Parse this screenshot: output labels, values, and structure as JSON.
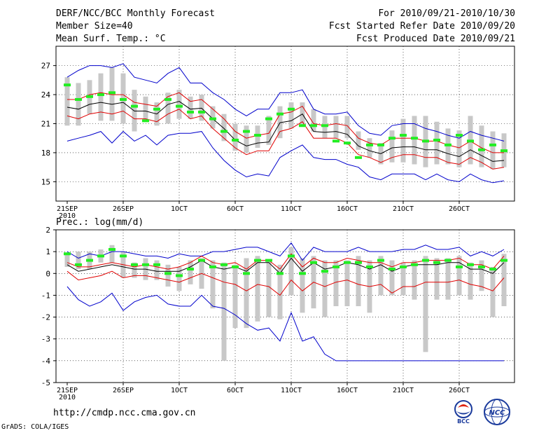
{
  "header": {
    "left": [
      "DERF/NCC/BCC Monthly Forecast",
      "Member Size=40",
      "Mean Surf. Temp.: °C"
    ],
    "right": [
      "For 2010/09/21-2010/10/30",
      "Fcst Started Refer Date 2010/09/20",
      "Fcst Produced Date 2010/09/21"
    ]
  },
  "footer": {
    "url": "http://cmdp.ncc.cma.gov.cn",
    "credit": "GrADS: COLA/IGES"
  },
  "logos": {
    "bcc": "BCC",
    "ncc": "NCC"
  },
  "colors": {
    "box": "#c8c8c8",
    "green": "#22ee22",
    "red": "#e00000",
    "blue": "#0000cc",
    "mean": "#000000",
    "grid": "#000000"
  },
  "chart_data": [
    {
      "type": "box-line",
      "title": "Mean Surf. Temp.: °C",
      "xlabel": "",
      "ylabel": "°C",
      "ylim": [
        13,
        29
      ],
      "yticks": [
        15,
        18,
        21,
        24,
        27
      ],
      "xticks": [
        {
          "day": 0,
          "label": "21SEP",
          "sub": "2010"
        },
        {
          "day": 5,
          "label": "26SEP"
        },
        {
          "day": 10,
          "label": "1OCT"
        },
        {
          "day": 15,
          "label": "6OCT"
        },
        {
          "day": 20,
          "label": "11OCT"
        },
        {
          "day": 25,
          "label": "16OCT"
        },
        {
          "day": 30,
          "label": "21OCT"
        },
        {
          "day": 35,
          "label": "26OCT"
        }
      ],
      "days": 40,
      "box_low": [
        20.8,
        20.8,
        22.0,
        21.3,
        21.3,
        21.0,
        20.2,
        21.2,
        20.8,
        21.0,
        21.5,
        21.5,
        21.3,
        20.5,
        19.2,
        18.2,
        18.0,
        18.5,
        18.8,
        19.5,
        20.5,
        20.8,
        20.2,
        19.5,
        19.5,
        19.5,
        18.3,
        17.5,
        16.8,
        17.0,
        17.0,
        16.8,
        16.5,
        16.8,
        16.8,
        16.5,
        16.8,
        16.5,
        16.3,
        16.5
      ],
      "box_high": [
        25.8,
        25.2,
        25.5,
        26.2,
        26.8,
        26.2,
        24.5,
        23.8,
        23.2,
        24.2,
        24.5,
        23.8,
        24.0,
        22.8,
        22.0,
        21.0,
        20.8,
        20.8,
        21.8,
        22.8,
        23.2,
        23.2,
        22.5,
        21.8,
        21.8,
        21.8,
        20.2,
        19.5,
        19.0,
        20.3,
        21.5,
        21.8,
        21.8,
        21.2,
        20.5,
        20.3,
        21.8,
        20.8,
        20.2,
        20.0
      ],
      "green": [
        25.0,
        23.5,
        23.8,
        24.0,
        24.2,
        23.5,
        22.8,
        21.3,
        22.5,
        23.5,
        22.8,
        22.2,
        22.2,
        21.5,
        20.2,
        19.3,
        20.2,
        19.8,
        21.5,
        22.0,
        22.5,
        20.8,
        20.8,
        20.8,
        19.2,
        19.0,
        17.5,
        18.8,
        18.8,
        19.5,
        19.8,
        19.5,
        19.2,
        19.3,
        18.8,
        19.8,
        19.2,
        18.3,
        18.8,
        18.2
      ],
      "series": [
        {
          "name": "max",
          "color": "#0000cc",
          "values": [
            19.2,
            19.5,
            19.8,
            20.2,
            19.0,
            20.2,
            19.2,
            19.8,
            18.8,
            19.8,
            20.0,
            20.0,
            20.2,
            18.5,
            17.2,
            16.2,
            15.5,
            15.8,
            15.6,
            17.5,
            18.2,
            18.8,
            17.5,
            17.3,
            17.3,
            16.8,
            16.5,
            15.5,
            15.2,
            15.8,
            15.8,
            15.8,
            15.2,
            15.8,
            15.2,
            15.0,
            15.8,
            15.2,
            14.9,
            15.1
          ]
        },
        {
          "name": "min",
          "color": "#0000cc",
          "values": [
            25.8,
            26.5,
            27.0,
            27.0,
            26.8,
            27.2,
            25.8,
            25.5,
            25.2,
            26.2,
            26.8,
            25.2,
            25.2,
            24.2,
            23.5,
            22.5,
            21.8,
            22.5,
            22.5,
            24.2,
            24.2,
            24.5,
            22.5,
            22.0,
            22.0,
            22.2,
            20.8,
            20.0,
            19.8,
            20.8,
            21.0,
            21.0,
            20.5,
            20.2,
            19.8,
            19.5,
            20.2,
            19.8,
            19.5,
            19.2
          ]
        },
        {
          "name": "upper",
          "color": "#e00000",
          "values": [
            23.5,
            23.5,
            24.0,
            24.2,
            24.0,
            24.0,
            23.2,
            23.0,
            22.8,
            23.8,
            24.2,
            23.3,
            23.5,
            22.5,
            21.5,
            20.2,
            19.5,
            19.8,
            20.0,
            22.0,
            22.2,
            22.8,
            21.0,
            20.8,
            21.0,
            20.8,
            19.5,
            19.0,
            18.8,
            19.5,
            19.5,
            19.5,
            19.2,
            19.2,
            18.8,
            18.5,
            19.2,
            18.5,
            18.0,
            18.0
          ]
        },
        {
          "name": "lower",
          "color": "#e00000",
          "values": [
            21.8,
            21.5,
            22.0,
            22.2,
            22.0,
            22.3,
            21.5,
            21.5,
            21.2,
            22.0,
            22.5,
            21.5,
            21.8,
            20.5,
            19.5,
            18.5,
            17.8,
            18.2,
            18.2,
            20.2,
            20.5,
            21.2,
            19.5,
            19.5,
            19.5,
            19.0,
            17.8,
            17.5,
            17.0,
            17.5,
            17.8,
            17.8,
            17.5,
            17.5,
            17.0,
            16.8,
            17.5,
            17.0,
            16.3,
            16.5
          ]
        },
        {
          "name": "mean",
          "color": "#000000",
          "values": [
            22.7,
            22.5,
            23.0,
            23.2,
            23.0,
            23.2,
            22.3,
            22.3,
            22.0,
            23.0,
            23.3,
            22.5,
            22.6,
            21.5,
            20.5,
            19.3,
            18.7,
            19.0,
            19.1,
            21.1,
            21.3,
            22.0,
            20.2,
            20.1,
            20.2,
            19.9,
            18.7,
            18.2,
            17.9,
            18.5,
            18.6,
            18.6,
            18.3,
            18.3,
            17.9,
            17.6,
            18.3,
            17.7,
            17.1,
            17.2
          ]
        }
      ]
    },
    {
      "type": "box-line",
      "title": "Prec.: log(mm/d)",
      "xlabel": "",
      "ylabel": "log(mm/d)",
      "ylim": [
        -5,
        2
      ],
      "yticks": [
        -5,
        -4,
        -3,
        -2,
        -1,
        0,
        1,
        2
      ],
      "xticks": [
        {
          "day": 0,
          "label": "21SEP",
          "sub": "2010"
        },
        {
          "day": 5,
          "label": "26SEP"
        },
        {
          "day": 10,
          "label": "1OCT"
        },
        {
          "day": 15,
          "label": "6OCT"
        },
        {
          "day": 20,
          "label": "11OCT"
        },
        {
          "day": 25,
          "label": "16OCT"
        },
        {
          "day": 30,
          "label": "21OCT"
        },
        {
          "day": 35,
          "label": "26OCT"
        }
      ],
      "days": 40,
      "box_low": [
        0.3,
        0.2,
        0.2,
        0.5,
        0.5,
        -0.2,
        -0.2,
        -0.3,
        -0.3,
        -0.6,
        -0.8,
        -0.5,
        -0.7,
        -1.6,
        -4.0,
        -2.5,
        -2.5,
        -2.2,
        -2.0,
        -2.1,
        -1.0,
        -1.8,
        -1.6,
        -2.0,
        -1.5,
        -1.5,
        -1.5,
        -1.8,
        -1.0,
        -1.0,
        -1.0,
        -1.2,
        -3.6,
        -1.2,
        -1.2,
        -1.0,
        -1.2,
        -0.8,
        -2.0,
        -1.5
      ],
      "box_high": [
        0.9,
        1.0,
        1.0,
        1.1,
        1.3,
        1.0,
        0.5,
        0.7,
        0.6,
        0.4,
        0.3,
        0.6,
        0.7,
        0.6,
        0.5,
        0.4,
        0.7,
        0.8,
        0.6,
        0.4,
        1.2,
        0.7,
        0.8,
        0.6,
        0.6,
        0.6,
        0.8,
        0.6,
        0.8,
        0.6,
        0.5,
        0.6,
        0.8,
        0.7,
        0.7,
        0.8,
        0.5,
        0.6,
        0.3,
        0.9
      ],
      "green": [
        0.9,
        0.4,
        0.6,
        0.8,
        1.1,
        0.8,
        0.4,
        0.4,
        0.4,
        0.0,
        -0.1,
        0.2,
        0.6,
        0.3,
        0.4,
        0.3,
        0.0,
        0.6,
        0.6,
        0.0,
        0.8,
        0.0,
        0.5,
        0.1,
        0.3,
        0.5,
        0.5,
        0.3,
        0.6,
        0.2,
        0.3,
        0.4,
        0.6,
        0.5,
        0.6,
        0.3,
        0.4,
        0.3,
        0.2,
        0.6
      ],
      "series": [
        {
          "name": "max",
          "color": "#0000cc",
          "values": [
            1.0,
            0.7,
            0.9,
            0.8,
            1.0,
            1.0,
            0.9,
            0.8,
            0.8,
            0.7,
            0.9,
            0.8,
            0.8,
            1.0,
            1.0,
            1.1,
            1.2,
            1.2,
            1.0,
            0.8,
            1.4,
            0.6,
            1.2,
            1.0,
            1.0,
            1.0,
            1.2,
            1.0,
            1.0,
            1.0,
            1.1,
            1.1,
            1.3,
            1.1,
            1.1,
            1.2,
            0.8,
            1.0,
            0.8,
            1.1
          ]
        },
        {
          "name": "min",
          "color": "#0000cc",
          "values": [
            -0.6,
            -1.2,
            -1.5,
            -1.3,
            -0.9,
            -1.7,
            -1.3,
            -1.1,
            -1.0,
            -1.4,
            -1.5,
            -1.5,
            -1.0,
            -1.5,
            -1.6,
            -1.9,
            -2.3,
            -2.6,
            -2.5,
            -3.1,
            -1.8,
            -3.1,
            -2.9,
            -3.7,
            -4.0,
            -4.0,
            -4.0,
            -4.0,
            -4.0,
            -4.0,
            -4.0,
            -4.0,
            -4.0,
            -4.0,
            -4.0,
            -4.0,
            -4.0,
            -4.0,
            -4.0,
            -4.0
          ]
        },
        {
          "name": "upper",
          "color": "#e00000",
          "values": [
            0.5,
            0.3,
            0.3,
            0.4,
            0.5,
            0.4,
            0.3,
            0.4,
            0.3,
            0.2,
            0.3,
            0.5,
            0.8,
            0.5,
            0.4,
            0.5,
            0.2,
            0.6,
            0.6,
            0.2,
            0.9,
            0.3,
            0.7,
            0.5,
            0.5,
            0.7,
            0.6,
            0.5,
            0.5,
            0.3,
            0.5,
            0.5,
            0.6,
            0.6,
            0.6,
            0.7,
            0.4,
            0.4,
            0.2,
            0.8
          ]
        },
        {
          "name": "lower",
          "color": "#e00000",
          "values": [
            0.1,
            -0.3,
            -0.2,
            -0.1,
            0.1,
            -0.2,
            -0.1,
            -0.1,
            -0.2,
            -0.3,
            -0.4,
            -0.2,
            0.0,
            -0.2,
            -0.4,
            -0.5,
            -0.8,
            -0.5,
            -0.6,
            -1.0,
            -0.3,
            -0.8,
            -0.4,
            -0.6,
            -0.4,
            -0.3,
            -0.5,
            -0.6,
            -0.5,
            -0.9,
            -0.6,
            -0.6,
            -0.4,
            -0.4,
            -0.4,
            -0.3,
            -0.5,
            -0.6,
            -0.8,
            -0.2
          ]
        },
        {
          "name": "mean",
          "color": "#000000",
          "values": [
            0.4,
            0.1,
            0.2,
            0.3,
            0.4,
            0.3,
            0.2,
            0.2,
            0.1,
            0.1,
            0.1,
            0.3,
            0.6,
            0.3,
            0.2,
            0.3,
            0.1,
            0.5,
            0.5,
            0.0,
            0.7,
            0.1,
            0.5,
            0.2,
            0.3,
            0.5,
            0.4,
            0.2,
            0.4,
            0.1,
            0.3,
            0.4,
            0.4,
            0.4,
            0.5,
            0.5,
            0.2,
            0.2,
            0.0,
            0.5
          ]
        }
      ]
    }
  ]
}
